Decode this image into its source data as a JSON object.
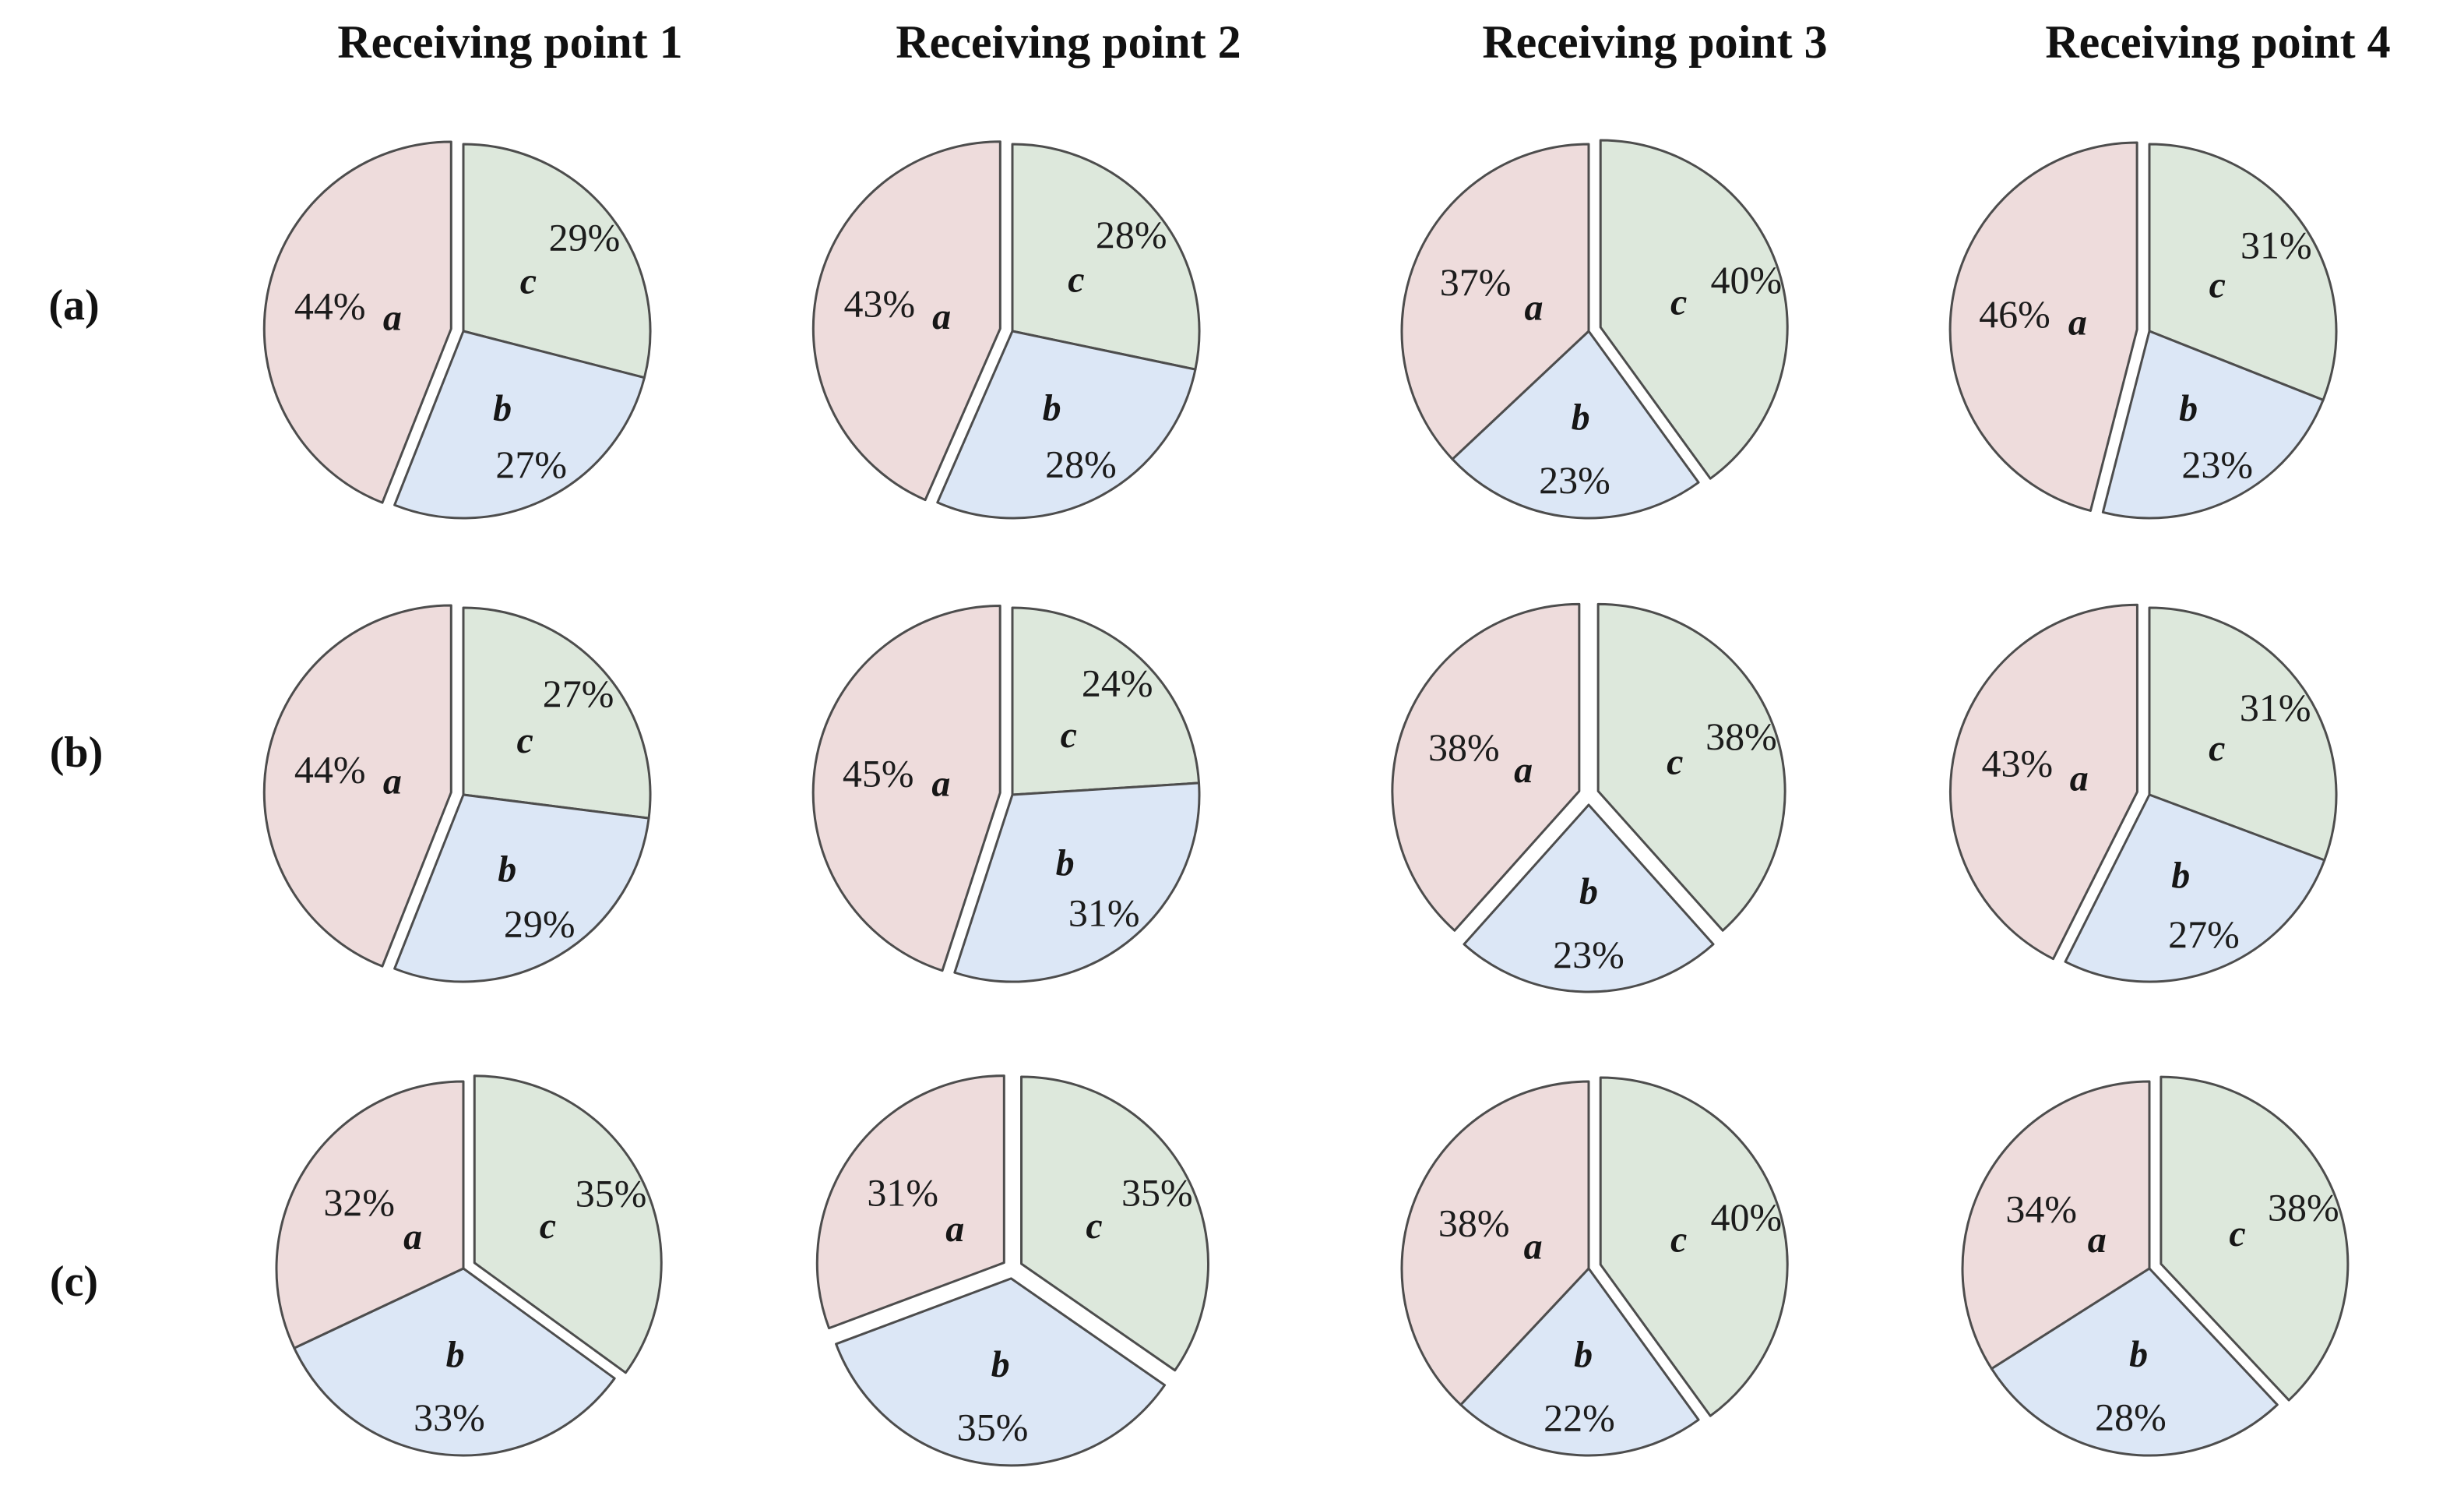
{
  "figure": {
    "headers": [
      "Receiving point 1",
      "Receiving point 2",
      "Receiving point 3",
      "Receiving point 4"
    ],
    "row_labels": [
      "(a)",
      "(b)",
      "(c)"
    ]
  },
  "colors": {
    "slice_a_fill": "#eedcdc",
    "slice_b_fill": "#dce7f6",
    "slice_c_fill": "#dde8dc",
    "outline": "#4d4d4d",
    "text": "#1c1c1c"
  },
  "chart_data": [
    {
      "type": "pie",
      "row": "(a)",
      "column": "Receiving point 1",
      "slices": [
        {
          "label": "a",
          "value": 44
        },
        {
          "label": "b",
          "value": 27
        },
        {
          "label": "c",
          "value": 29
        }
      ],
      "exploded": [
        "a"
      ]
    },
    {
      "type": "pie",
      "row": "(a)",
      "column": "Receiving point 2",
      "slices": [
        {
          "label": "a",
          "value": 43
        },
        {
          "label": "b",
          "value": 28
        },
        {
          "label": "c",
          "value": 28
        }
      ],
      "exploded": [
        "a"
      ]
    },
    {
      "type": "pie",
      "row": "(a)",
      "column": "Receiving point 3",
      "slices": [
        {
          "label": "a",
          "value": 37
        },
        {
          "label": "b",
          "value": 23
        },
        {
          "label": "c",
          "value": 40
        }
      ],
      "exploded": [
        "c"
      ]
    },
    {
      "type": "pie",
      "row": "(a)",
      "column": "Receiving point 4",
      "slices": [
        {
          "label": "a",
          "value": 46
        },
        {
          "label": "b",
          "value": 23
        },
        {
          "label": "c",
          "value": 31
        }
      ],
      "exploded": [
        "a"
      ]
    },
    {
      "type": "pie",
      "row": "(b)",
      "column": "Receiving point 1",
      "slices": [
        {
          "label": "a",
          "value": 44
        },
        {
          "label": "b",
          "value": 29
        },
        {
          "label": "c",
          "value": 27
        }
      ],
      "exploded": [
        "a"
      ]
    },
    {
      "type": "pie",
      "row": "(b)",
      "column": "Receiving point 2",
      "slices": [
        {
          "label": "a",
          "value": 45
        },
        {
          "label": "b",
          "value": 31
        },
        {
          "label": "c",
          "value": 24
        }
      ],
      "exploded": [
        "a"
      ]
    },
    {
      "type": "pie",
      "row": "(b)",
      "column": "Receiving point 3",
      "slices": [
        {
          "label": "a",
          "value": 38
        },
        {
          "label": "b",
          "value": 23
        },
        {
          "label": "c",
          "value": 38
        }
      ],
      "exploded": [
        "a",
        "b",
        "c"
      ]
    },
    {
      "type": "pie",
      "row": "(b)",
      "column": "Receiving point 4",
      "slices": [
        {
          "label": "a",
          "value": 43
        },
        {
          "label": "b",
          "value": 27
        },
        {
          "label": "c",
          "value": 31
        }
      ],
      "exploded": [
        "a"
      ]
    },
    {
      "type": "pie",
      "row": "(c)",
      "column": "Receiving point 1",
      "slices": [
        {
          "label": "a",
          "value": 32
        },
        {
          "label": "b",
          "value": 33
        },
        {
          "label": "c",
          "value": 35
        }
      ],
      "exploded": [
        "c"
      ]
    },
    {
      "type": "pie",
      "row": "(c)",
      "column": "Receiving point 2",
      "slices": [
        {
          "label": "a",
          "value": 31
        },
        {
          "label": "b",
          "value": 35
        },
        {
          "label": "c",
          "value": 35
        }
      ],
      "exploded": [
        "a",
        "b",
        "c"
      ]
    },
    {
      "type": "pie",
      "row": "(c)",
      "column": "Receiving point 3",
      "slices": [
        {
          "label": "a",
          "value": 38
        },
        {
          "label": "b",
          "value": 22
        },
        {
          "label": "c",
          "value": 40
        }
      ],
      "exploded": [
        "c"
      ]
    },
    {
      "type": "pie",
      "row": "(c)",
      "column": "Receiving point 4",
      "slices": [
        {
          "label": "a",
          "value": 34
        },
        {
          "label": "b",
          "value": 28
        },
        {
          "label": "c",
          "value": 38
        }
      ],
      "exploded": [
        "c"
      ]
    }
  ]
}
